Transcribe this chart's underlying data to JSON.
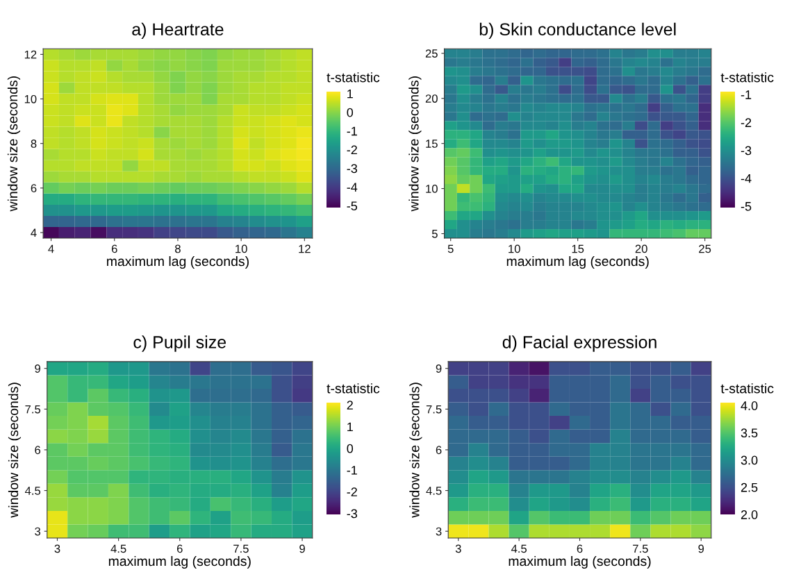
{
  "chart_data": [
    {
      "type": "heatmap",
      "title": "a) Heartrate",
      "xlabel": "maximum lag (seconds)",
      "ylabel": "window size (seconds)",
      "clabel": "t-statistic",
      "x": [
        4,
        4.5,
        5,
        5.5,
        6,
        6.5,
        7,
        7.5,
        8,
        8.5,
        9,
        9.5,
        10,
        10.5,
        11,
        11.5,
        12
      ],
      "y": [
        12,
        11.5,
        11,
        10.5,
        10,
        9.5,
        9,
        8.5,
        8,
        7.5,
        7,
        6.5,
        6,
        5.5,
        5,
        4.5,
        4
      ],
      "xlim": [
        3.75,
        12.25
      ],
      "ylim": [
        3.75,
        12.25
      ],
      "xticks": [
        4,
        6,
        8,
        10,
        12
      ],
      "yticks": [
        4,
        6,
        8,
        10,
        12
      ],
      "clim": [
        -5.1,
        1.1
      ],
      "cticks": [
        -5,
        -4,
        -3,
        -2,
        -1,
        0,
        1
      ],
      "cells": [
        [
          0.4,
          0.3,
          0.2,
          0.3,
          0.3,
          0.3,
          0.2,
          0.1,
          0.1,
          0.0,
          -0.1,
          0.1,
          0.2,
          0.2,
          0.3,
          0.4,
          0.5
        ],
        [
          0.6,
          0.4,
          0.4,
          0.5,
          0.1,
          0.3,
          0.1,
          0.0,
          0.1,
          0.0,
          -0.1,
          0.2,
          0.2,
          0.2,
          0.3,
          0.4,
          0.5
        ],
        [
          0.6,
          0.4,
          0.5,
          0.6,
          0.4,
          0.3,
          0.3,
          0.1,
          -0.1,
          0.1,
          0.0,
          0.2,
          0.3,
          0.3,
          0.4,
          0.4,
          0.5
        ],
        [
          0.7,
          0.2,
          0.5,
          0.5,
          0.5,
          0.4,
          0.4,
          0.2,
          -0.1,
          0.1,
          -0.1,
          0.2,
          0.3,
          0.4,
          0.4,
          0.5,
          0.5
        ],
        [
          0.7,
          0.5,
          0.5,
          0.7,
          0.8,
          0.8,
          0.4,
          0.2,
          0.2,
          0.2,
          -0.1,
          0.3,
          0.3,
          0.4,
          0.4,
          0.5,
          0.6
        ],
        [
          0.6,
          0.5,
          0.6,
          0.6,
          0.9,
          0.8,
          0.4,
          0.3,
          0.1,
          0.2,
          0.2,
          0.3,
          0.6,
          0.5,
          0.5,
          0.6,
          0.7
        ],
        [
          0.6,
          0.5,
          0.8,
          0.6,
          0.9,
          0.5,
          0.4,
          0.3,
          0.3,
          0.3,
          0.2,
          0.4,
          0.6,
          0.6,
          0.7,
          0.8,
          0.7
        ],
        [
          0.5,
          0.4,
          0.5,
          0.7,
          0.6,
          0.5,
          0.4,
          0.0,
          0.3,
          0.3,
          0.2,
          0.4,
          0.7,
          0.6,
          0.7,
          0.8,
          0.9
        ],
        [
          0.5,
          0.4,
          0.5,
          0.7,
          0.6,
          0.5,
          0.6,
          0.3,
          0.2,
          0.3,
          0.2,
          0.4,
          0.8,
          0.5,
          0.7,
          0.8,
          1.0
        ],
        [
          0.3,
          0.4,
          0.4,
          0.6,
          0.5,
          0.5,
          0.7,
          0.3,
          0.3,
          0.2,
          0.3,
          0.4,
          0.7,
          0.6,
          0.8,
          0.9,
          1.0
        ],
        [
          0.4,
          0.4,
          0.5,
          0.5,
          0.5,
          0.1,
          0.5,
          0.5,
          0.3,
          0.3,
          0.3,
          0.4,
          0.7,
          0.7,
          0.6,
          0.8,
          0.9
        ],
        [
          0.2,
          0.3,
          0.3,
          0.4,
          0.4,
          0.4,
          0.4,
          0.3,
          0.3,
          0.2,
          0.3,
          0.3,
          0.4,
          0.5,
          0.5,
          0.6,
          0.8
        ],
        [
          -0.4,
          -0.2,
          -0.3,
          -0.2,
          -0.3,
          -0.3,
          -0.2,
          -0.3,
          -0.4,
          -0.3,
          -0.3,
          -0.2,
          -0.1,
          0.0,
          0.1,
          0.2,
          0.4
        ],
        [
          -1.3,
          -1.3,
          -1.1,
          -1.0,
          -1.0,
          -1.0,
          -1.1,
          -1.1,
          -1.2,
          -1.1,
          -1.1,
          -0.8,
          -0.7,
          -0.6,
          -0.5,
          -0.4,
          -0.2
        ],
        [
          -2.0,
          -2.0,
          -1.8,
          -1.8,
          -1.7,
          -1.7,
          -1.8,
          -1.9,
          -1.9,
          -1.8,
          -1.8,
          -1.4,
          -1.3,
          -1.2,
          -1.1,
          -1.0,
          -0.8
        ],
        [
          -3.1,
          -3.1,
          -3.0,
          -3.0,
          -2.8,
          -2.7,
          -2.7,
          -2.8,
          -2.8,
          -2.7,
          -2.7,
          -2.4,
          -2.3,
          -2.1,
          -2.0,
          -1.9,
          -1.6
        ],
        [
          -5.0,
          -4.6,
          -4.5,
          -4.9,
          -4.3,
          -4.3,
          -4.2,
          -3.9,
          -3.8,
          -3.7,
          -3.7,
          -3.4,
          -3.2,
          -3.1,
          -3.0,
          -2.7,
          -2.4
        ]
      ]
    },
    {
      "type": "heatmap",
      "title": "b) Skin conductance level",
      "xlabel": "maximum lag (seconds)",
      "ylabel": "window size (seconds)",
      "clabel": "t-statistic",
      "x": [
        5,
        6,
        7,
        8,
        9,
        10,
        11,
        12,
        13,
        14,
        15,
        16,
        17,
        18,
        19,
        20,
        21,
        22,
        23,
        24,
        25
      ],
      "y": [
        25,
        24,
        23,
        22,
        21,
        20,
        19,
        18,
        17,
        16,
        15,
        14,
        13,
        12,
        11,
        10,
        9,
        8,
        7,
        6,
        5
      ],
      "xlim": [
        4.5,
        25.5
      ],
      "ylim": [
        4.5,
        25.5
      ],
      "xticks": [
        5,
        10,
        15,
        20,
        25
      ],
      "yticks": [
        5,
        10,
        15,
        20,
        25
      ],
      "clim": [
        -5.05,
        -0.9
      ],
      "cticks": [
        -5,
        -4,
        -3,
        -2,
        -1
      ],
      "cells": [
        [
          -3.2,
          -3.2,
          -3.3,
          -3.5,
          -3.5,
          -3.6,
          -3.7,
          -3.6,
          -3.7,
          -3.7,
          -3.6,
          -3.6,
          -3.5,
          -3.2,
          -3.4,
          -3.3,
          -3.0,
          -3.0,
          -3.3,
          -3.3,
          -3.2
        ],
        [
          -3.4,
          -3.3,
          -3.4,
          -3.5,
          -3.6,
          -3.7,
          -3.5,
          -3.8,
          -3.9,
          -4.3,
          -3.7,
          -3.8,
          -3.6,
          -3.4,
          -3.2,
          -3.1,
          -3.2,
          -3.5,
          -3.2,
          -3.3,
          -3.3
        ],
        [
          -2.9,
          -3.0,
          -3.3,
          -3.4,
          -3.5,
          -3.6,
          -3.7,
          -3.7,
          -4.0,
          -4.0,
          -4.0,
          -4.1,
          -3.6,
          -3.5,
          -3.0,
          -3.4,
          -3.3,
          -3.1,
          -3.3,
          -3.4,
          -3.6
        ],
        [
          -3.1,
          -3.0,
          -3.6,
          -3.7,
          -3.3,
          -3.8,
          -2.9,
          -3.4,
          -3.5,
          -3.6,
          -3.5,
          -4.2,
          -3.6,
          -3.7,
          -3.6,
          -3.4,
          -3.6,
          -3.2,
          -3.5,
          -3.8,
          -3.5
        ],
        [
          -3.3,
          -2.8,
          -3.0,
          -3.6,
          -3.9,
          -3.3,
          -3.4,
          -3.3,
          -3.5,
          -4.1,
          -3.6,
          -4.1,
          -3.5,
          -3.9,
          -4.0,
          -3.6,
          -3.6,
          -2.9,
          -4.0,
          -3.5,
          -4.3
        ],
        [
          -3.4,
          -3.0,
          -3.3,
          -3.5,
          -3.2,
          -3.5,
          -3.3,
          -3.4,
          -3.5,
          -3.6,
          -3.5,
          -3.9,
          -3.9,
          -3.1,
          -3.5,
          -3.3,
          -3.9,
          -3.5,
          -3.4,
          -3.7,
          -4.3
        ],
        [
          -3.3,
          -3.1,
          -3.2,
          -3.4,
          -3.3,
          -3.4,
          -3.1,
          -3.2,
          -3.1,
          -3.1,
          -3.2,
          -3.5,
          -3.4,
          -3.5,
          -3.4,
          -3.6,
          -4.3,
          -3.8,
          -3.5,
          -3.5,
          -4.5
        ],
        [
          -3.4,
          -3.0,
          -3.6,
          -3.5,
          -3.6,
          -3.0,
          -3.2,
          -3.1,
          -3.1,
          -3.1,
          -3.4,
          -3.6,
          -3.2,
          -3.4,
          -3.5,
          -3.6,
          -4.0,
          -3.9,
          -3.9,
          -3.7,
          -4.5
        ],
        [
          -2.7,
          -2.9,
          -3.1,
          -3.6,
          -3.3,
          -3.4,
          -3.1,
          -3.1,
          -3.2,
          -3.0,
          -3.3,
          -3.2,
          -3.5,
          -3.6,
          -3.3,
          -4.1,
          -3.6,
          -4.3,
          -4.0,
          -3.8,
          -4.5
        ],
        [
          -2.4,
          -2.4,
          -2.6,
          -3.2,
          -3.3,
          -3.5,
          -2.8,
          -2.8,
          -2.6,
          -2.9,
          -3.0,
          -3.2,
          -3.4,
          -3.3,
          -3.8,
          -3.8,
          -3.6,
          -4.0,
          -4.2,
          -3.9,
          -4.0
        ],
        [
          -2.5,
          -2.2,
          -2.6,
          -3.1,
          -3.1,
          -3.2,
          -2.8,
          -3.0,
          -2.8,
          -2.8,
          -2.9,
          -3.2,
          -3.3,
          -2.9,
          -3.2,
          -4.0,
          -3.5,
          -3.6,
          -3.8,
          -4.0,
          -4.1
        ],
        [
          -2.0,
          -1.9,
          -2.2,
          -3.0,
          -2.9,
          -3.0,
          -2.9,
          -2.7,
          -2.9,
          -2.9,
          -2.8,
          -3.1,
          -2.9,
          -3.0,
          -3.2,
          -3.4,
          -3.4,
          -3.5,
          -3.8,
          -3.8,
          -4.0
        ],
        [
          -1.8,
          -2.0,
          -2.3,
          -2.7,
          -2.6,
          -2.8,
          -2.6,
          -2.4,
          -2.2,
          -2.6,
          -2.9,
          -2.9,
          -3.0,
          -2.8,
          -3.1,
          -3.3,
          -3.4,
          -3.2,
          -3.5,
          -3.7,
          -3.8
        ],
        [
          -1.7,
          -2.0,
          -2.3,
          -2.5,
          -2.5,
          -2.9,
          -2.4,
          -2.5,
          -2.6,
          -2.4,
          -2.3,
          -2.8,
          -2.9,
          -3.0,
          -3.0,
          -3.3,
          -3.3,
          -3.5,
          -3.4,
          -3.8,
          -3.7
        ],
        [
          -1.6,
          -1.9,
          -1.8,
          -2.6,
          -2.7,
          -2.8,
          -2.7,
          -2.7,
          -2.5,
          -2.4,
          -2.7,
          -2.9,
          -3.0,
          -2.8,
          -3.0,
          -3.2,
          -3.1,
          -3.3,
          -3.4,
          -3.6,
          -3.7
        ],
        [
          -1.8,
          -1.3,
          -1.8,
          -2.2,
          -2.8,
          -2.8,
          -2.5,
          -2.9,
          -3.0,
          -2.6,
          -2.6,
          -3.1,
          -3.1,
          -3.0,
          -3.0,
          -3.3,
          -3.2,
          -3.3,
          -3.2,
          -3.4,
          -3.6
        ],
        [
          -1.8,
          -2.3,
          -2.1,
          -2.3,
          -3.0,
          -3.1,
          -3.0,
          -3.2,
          -3.1,
          -3.1,
          -3.0,
          -3.0,
          -3.1,
          -3.1,
          -3.2,
          -3.3,
          -3.2,
          -3.4,
          -3.6,
          -3.4,
          -3.8
        ],
        [
          -1.8,
          -2.2,
          -2.2,
          -2.4,
          -3.1,
          -3.2,
          -3.1,
          -3.3,
          -3.2,
          -3.2,
          -3.2,
          -3.1,
          -3.0,
          -2.9,
          -3.2,
          -3.0,
          -3.2,
          -3.3,
          -3.4,
          -3.5,
          -3.6
        ],
        [
          -2.2,
          -2.6,
          -2.6,
          -3.0,
          -3.2,
          -3.3,
          -3.3,
          -3.4,
          -3.2,
          -3.2,
          -3.1,
          -3.1,
          -3.0,
          -3.0,
          -2.8,
          -2.6,
          -3.0,
          -3.0,
          -3.0,
          -2.9,
          -2.8
        ],
        [
          -2.6,
          -3.0,
          -3.2,
          -3.3,
          -3.4,
          -3.5,
          -3.3,
          -3.3,
          -3.2,
          -3.2,
          -3.4,
          -3.3,
          -2.9,
          -2.8,
          -2.7,
          -2.5,
          -2.6,
          -2.4,
          -2.5,
          -2.4,
          -2.4
        ],
        [
          -3.0,
          -3.0,
          -3.3,
          -3.4,
          -3.3,
          -3.1,
          -2.8,
          -2.7,
          -2.6,
          -2.7,
          -2.7,
          -2.8,
          -2.9,
          -2.3,
          -2.3,
          -2.3,
          -2.3,
          -2.2,
          -2.1,
          -1.9,
          -1.9
        ]
      ]
    },
    {
      "type": "heatmap",
      "title": "c) Pupil size",
      "xlabel": "maximum lag (seconds)",
      "ylabel": "window size (seconds)",
      "clabel": "t-statistic",
      "x": [
        3,
        3.5,
        4,
        4.5,
        5,
        5.5,
        6,
        6.5,
        7,
        7.5,
        8,
        8.5,
        9
      ],
      "y": [
        9,
        8.5,
        8,
        7.5,
        7,
        6.5,
        6,
        5.5,
        5,
        4.5,
        4,
        3.5,
        3
      ],
      "xlim": [
        2.75,
        9.25
      ],
      "ylim": [
        2.75,
        9.25
      ],
      "xticks": [
        3,
        4.5,
        6,
        7.5,
        9
      ],
      "yticks": [
        3,
        4.5,
        6,
        7.5,
        9
      ],
      "clim": [
        -3.05,
        2.1
      ],
      "cticks": [
        -3,
        -2,
        -1,
        0,
        1,
        2
      ],
      "cells": [
        [
          0.0,
          0.0,
          0.1,
          -0.3,
          -0.3,
          -1.0,
          -1.1,
          -2.0,
          -1.2,
          -1.2,
          -1.6,
          -1.7,
          -2.0
        ],
        [
          0.7,
          0.4,
          0.4,
          0.0,
          -0.2,
          -0.7,
          -0.9,
          -1.0,
          -1.1,
          -1.1,
          -1.1,
          -1.8,
          -2.1
        ],
        [
          0.7,
          0.4,
          0.8,
          0.4,
          0.2,
          -0.4,
          -0.3,
          -1.2,
          -1.2,
          -1.2,
          -1.3,
          -1.8,
          -2.2
        ],
        [
          0.9,
          1.1,
          0.8,
          0.7,
          0.4,
          -0.6,
          -0.1,
          -0.7,
          -0.9,
          -0.9,
          -1.1,
          -1.5,
          -1.6
        ],
        [
          1.0,
          1.1,
          1.4,
          0.8,
          0.5,
          -0.3,
          -0.2,
          -0.5,
          -0.8,
          -0.8,
          -1.1,
          -1.5,
          -1.4
        ],
        [
          1.2,
          1.1,
          1.3,
          0.8,
          0.5,
          0.3,
          0.1,
          -0.5,
          -0.7,
          -0.6,
          -1.0,
          -1.5,
          -1.1
        ],
        [
          0.8,
          1.0,
          0.8,
          0.8,
          0.5,
          0.3,
          0.2,
          -0.6,
          -0.6,
          -0.5,
          -0.9,
          -1.6,
          -1.0
        ],
        [
          0.8,
          0.8,
          0.9,
          0.8,
          0.6,
          0.4,
          0.3,
          -0.4,
          -0.5,
          -0.4,
          -0.8,
          -1.2,
          -1.0
        ],
        [
          1.0,
          0.7,
          0.7,
          0.7,
          0.3,
          0.3,
          0.2,
          0.2,
          0.2,
          0.0,
          -0.4,
          -0.9,
          -0.4
        ],
        [
          1.3,
          0.8,
          0.8,
          1.1,
          0.5,
          0.2,
          0.3,
          0.1,
          0.1,
          0.2,
          -0.1,
          -0.8,
          -0.2
        ],
        [
          1.3,
          1.2,
          1.2,
          1.1,
          0.7,
          0.5,
          0.4,
          0.1,
          0.6,
          0.4,
          0.2,
          -0.2,
          0.0
        ],
        [
          1.9,
          1.2,
          1.2,
          1.1,
          0.7,
          0.5,
          0.8,
          0.3,
          -0.1,
          0.5,
          0.4,
          0.1,
          -0.2
        ],
        [
          1.9,
          1.0,
          0.9,
          0.5,
          0.5,
          -0.2,
          0.3,
          -0.1,
          0.0,
          0.4,
          0.1,
          0.1,
          -0.1
        ]
      ]
    },
    {
      "type": "heatmap",
      "title": "d) Facial expression",
      "xlabel": "maximum lag (seconds)",
      "ylabel": "window size (seconds)",
      "clabel": "t-statistic",
      "x": [
        3,
        3.5,
        4,
        4.5,
        5,
        5.5,
        6,
        6.5,
        7,
        7.5,
        8,
        8.5,
        9
      ],
      "y": [
        9,
        8.5,
        8,
        7.5,
        7,
        6.5,
        6,
        5.5,
        5,
        4.5,
        4,
        3.5,
        3
      ],
      "xlim": [
        2.75,
        9.25
      ],
      "ylim": [
        2.75,
        9.25
      ],
      "xticks": [
        3,
        4.5,
        6,
        7.5,
        9
      ],
      "yticks": [
        3,
        4.5,
        6,
        7.5,
        9
      ],
      "clim": [
        2.0,
        4.05
      ],
      "cticks": [
        {
          "value": 2,
          "label": "2.0"
        },
        {
          "value": 2.5,
          "label": "2.5"
        },
        {
          "value": 3,
          "label": "3.0"
        },
        {
          "value": 3.5,
          "label": "3.5"
        },
        {
          "value": 4,
          "label": "4.0"
        }
      ],
      "cells": [
        [
          2.4,
          2.4,
          2.4,
          2.2,
          2.1,
          2.5,
          2.5,
          2.6,
          2.6,
          2.5,
          2.5,
          2.6,
          2.4
        ],
        [
          2.6,
          2.4,
          2.4,
          2.3,
          2.3,
          2.6,
          2.6,
          2.6,
          2.7,
          2.5,
          2.6,
          2.5,
          2.5
        ],
        [
          2.5,
          2.5,
          2.5,
          2.4,
          2.2,
          2.6,
          2.6,
          2.6,
          2.7,
          2.4,
          2.6,
          2.6,
          2.5
        ],
        [
          2.6,
          2.5,
          2.7,
          2.5,
          2.5,
          2.7,
          2.6,
          2.6,
          2.8,
          2.7,
          2.5,
          2.7,
          2.5
        ],
        [
          2.7,
          2.6,
          2.6,
          2.5,
          2.5,
          2.4,
          2.7,
          2.6,
          2.8,
          2.7,
          2.7,
          2.6,
          2.6
        ],
        [
          2.7,
          2.7,
          2.7,
          2.6,
          2.5,
          2.7,
          2.6,
          2.6,
          2.9,
          2.7,
          2.7,
          2.7,
          2.6
        ],
        [
          2.7,
          2.9,
          2.7,
          2.6,
          2.6,
          2.7,
          2.7,
          2.9,
          2.9,
          2.8,
          2.8,
          2.8,
          2.7
        ],
        [
          2.9,
          3.0,
          2.9,
          2.6,
          2.6,
          2.6,
          2.7,
          2.9,
          2.9,
          2.8,
          2.8,
          2.9,
          2.7
        ],
        [
          3.0,
          3.2,
          3.1,
          2.8,
          2.8,
          2.8,
          2.9,
          3.0,
          3.0,
          2.9,
          3.0,
          3.1,
          2.9
        ],
        [
          3.1,
          3.3,
          3.3,
          2.9,
          3.1,
          3.1,
          2.9,
          3.2,
          3.3,
          3.0,
          3.2,
          3.2,
          3.1
        ],
        [
          3.3,
          3.4,
          3.4,
          3.0,
          3.2,
          3.1,
          3.0,
          3.3,
          3.4,
          3.1,
          3.3,
          3.3,
          3.2
        ],
        [
          3.6,
          3.6,
          3.6,
          3.2,
          3.5,
          3.4,
          3.4,
          3.6,
          3.6,
          3.4,
          3.5,
          3.6,
          3.6
        ],
        [
          4.0,
          4.0,
          3.8,
          3.5,
          3.8,
          3.8,
          3.8,
          3.8,
          4.0,
          3.6,
          3.8,
          3.8,
          3.7
        ]
      ]
    }
  ]
}
